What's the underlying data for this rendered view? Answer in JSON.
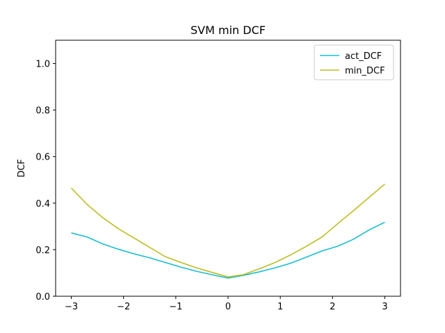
{
  "chart_data": {
    "type": "line",
    "title": "SVM min DCF",
    "xlabel": "",
    "ylabel": "DCF",
    "xlim": [
      -3.3,
      3.3
    ],
    "ylim": [
      0,
      1.1
    ],
    "xticks": [
      -3,
      -2,
      -1,
      0,
      1,
      2,
      3
    ],
    "xtick_labels": [
      "−3",
      "−2",
      "−1",
      "0",
      "1",
      "2",
      "3"
    ],
    "yticks": [
      0.0,
      0.2,
      0.4,
      0.6,
      0.8,
      1.0
    ],
    "ytick_labels": [
      "0.0",
      "0.2",
      "0.4",
      "0.6",
      "0.8",
      "1.0"
    ],
    "grid": false,
    "legend_position": "top-right",
    "series": [
      {
        "name": "act_DCF",
        "color": "#17becf",
        "x": [
          -3.0,
          -2.7,
          -2.4,
          -2.1,
          -1.8,
          -1.5,
          -1.2,
          -0.9,
          -0.6,
          -0.3,
          0.0,
          0.3,
          0.6,
          0.9,
          1.2,
          1.5,
          1.8,
          2.1,
          2.4,
          2.7,
          3.0
        ],
        "y": [
          0.272,
          0.255,
          0.225,
          0.202,
          0.182,
          0.165,
          0.145,
          0.125,
          0.107,
          0.092,
          0.078,
          0.09,
          0.105,
          0.122,
          0.142,
          0.168,
          0.195,
          0.215,
          0.245,
          0.285,
          0.318
        ]
      },
      {
        "name": "min_DCF",
        "color": "#bcbd22",
        "x": [
          -3.0,
          -2.7,
          -2.4,
          -2.1,
          -1.8,
          -1.5,
          -1.2,
          -0.9,
          -0.6,
          -0.3,
          0.0,
          0.3,
          0.6,
          0.9,
          1.2,
          1.5,
          1.8,
          2.1,
          2.4,
          2.7,
          3.0
        ],
        "y": [
          0.465,
          0.395,
          0.338,
          0.29,
          0.25,
          0.21,
          0.17,
          0.145,
          0.122,
          0.102,
          0.083,
          0.093,
          0.118,
          0.145,
          0.178,
          0.215,
          0.255,
          0.312,
          0.368,
          0.425,
          0.482
        ]
      }
    ]
  }
}
